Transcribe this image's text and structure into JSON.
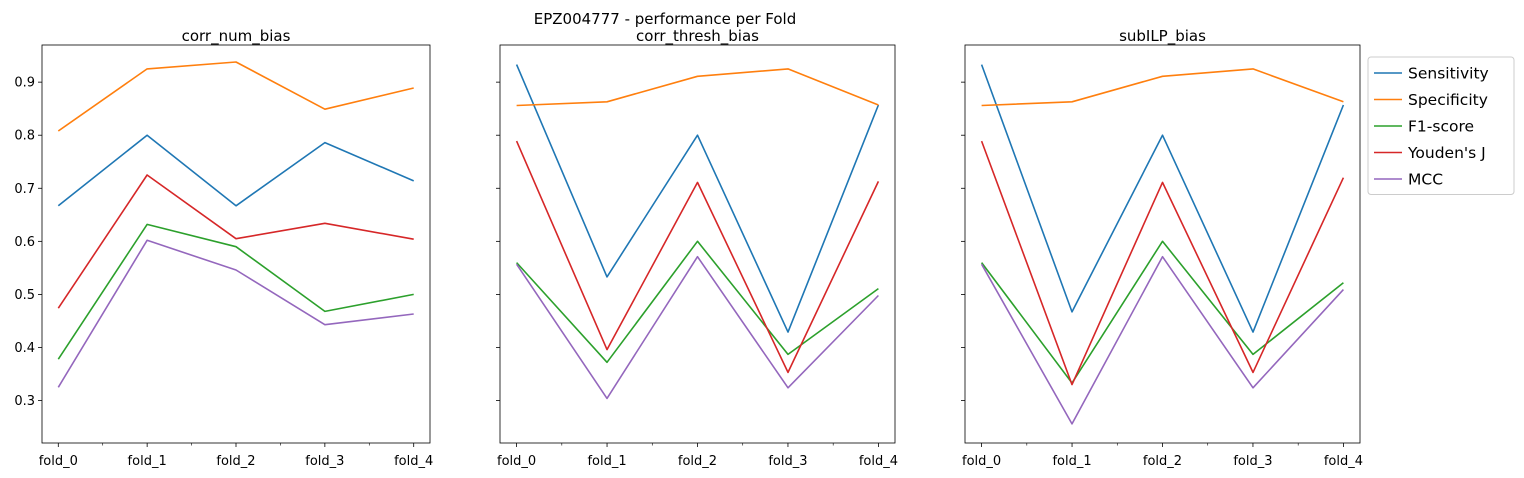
{
  "figure": {
    "suptitle": "EPZ004777 - performance per Fold"
  },
  "colors": {
    "Sensitivity": "#1f77b4",
    "Specificity": "#ff7f0e",
    "F1-score": "#2ca02c",
    "Youden's J": "#d62728",
    "MCC": "#9467bd"
  },
  "legend": {
    "placement": "outside-right-top",
    "entries": [
      "Sensitivity",
      "Specificity",
      "F1-score",
      "Youden's J",
      "MCC"
    ]
  },
  "chart_data": [
    {
      "type": "line",
      "title": "corr_num_bias",
      "x": [
        "fold_0",
        "fold_1",
        "fold_2",
        "fold_3",
        "fold_4"
      ],
      "ylim": [
        0.22,
        0.97
      ],
      "yticks": [
        0.3,
        0.4,
        0.5,
        0.6,
        0.7,
        0.8,
        0.9
      ],
      "grid": false,
      "series": [
        {
          "name": "Sensitivity",
          "values": [
            0.667,
            0.8,
            0.667,
            0.786,
            0.714
          ]
        },
        {
          "name": "Specificity",
          "values": [
            0.808,
            0.925,
            0.938,
            0.849,
            0.889
          ]
        },
        {
          "name": "F1-score",
          "values": [
            0.378,
            0.632,
            0.59,
            0.468,
            0.5
          ]
        },
        {
          "name": "Youden's J",
          "values": [
            0.474,
            0.725,
            0.605,
            0.634,
            0.604
          ]
        },
        {
          "name": "MCC",
          "values": [
            0.325,
            0.602,
            0.546,
            0.443,
            0.463
          ]
        }
      ]
    },
    {
      "type": "line",
      "title": "corr_thresh_bias",
      "x": [
        "fold_0",
        "fold_1",
        "fold_2",
        "fold_3",
        "fold_4"
      ],
      "ylim": [
        0.22,
        0.97
      ],
      "yticks": [
        0.3,
        0.4,
        0.5,
        0.6,
        0.7,
        0.8,
        0.9
      ],
      "grid": false,
      "series": [
        {
          "name": "Sensitivity",
          "values": [
            0.933,
            0.533,
            0.8,
            0.429,
            0.857
          ]
        },
        {
          "name": "Specificity",
          "values": [
            0.856,
            0.863,
            0.911,
            0.925,
            0.857
          ]
        },
        {
          "name": "F1-score",
          "values": [
            0.56,
            0.372,
            0.6,
            0.387,
            0.511
          ]
        },
        {
          "name": "Youden's J",
          "values": [
            0.789,
            0.396,
            0.711,
            0.353,
            0.713
          ]
        },
        {
          "name": "MCC",
          "values": [
            0.557,
            0.304,
            0.571,
            0.324,
            0.498
          ]
        }
      ]
    },
    {
      "type": "line",
      "title": "subILP_bias",
      "x": [
        "fold_0",
        "fold_1",
        "fold_2",
        "fold_3",
        "fold_4"
      ],
      "ylim": [
        0.22,
        0.97
      ],
      "yticks": [
        0.3,
        0.4,
        0.5,
        0.6,
        0.7,
        0.8,
        0.9
      ],
      "grid": false,
      "series": [
        {
          "name": "Sensitivity",
          "values": [
            0.933,
            0.467,
            0.8,
            0.429,
            0.857
          ]
        },
        {
          "name": "Specificity",
          "values": [
            0.856,
            0.863,
            0.911,
            0.925,
            0.863
          ]
        },
        {
          "name": "F1-score",
          "values": [
            0.56,
            0.333,
            0.6,
            0.387,
            0.522
          ]
        },
        {
          "name": "Youden's J",
          "values": [
            0.789,
            0.33,
            0.711,
            0.353,
            0.72
          ]
        },
        {
          "name": "MCC",
          "values": [
            0.557,
            0.256,
            0.571,
            0.324,
            0.509
          ]
        }
      ]
    }
  ]
}
